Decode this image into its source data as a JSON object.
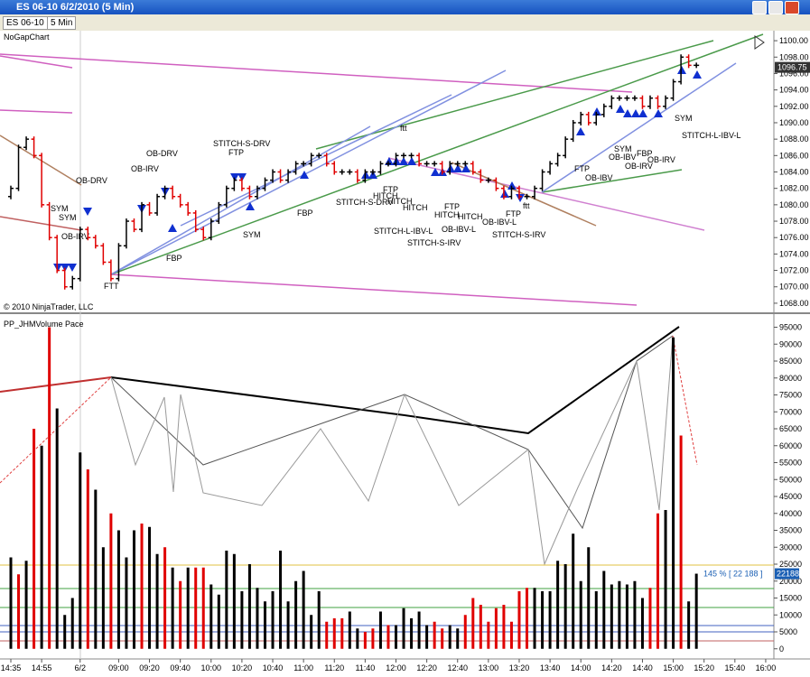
{
  "window": {
    "title": "ES 06-10  6/2/2010 (5 Min)",
    "symbol": "ES 06-10",
    "interval": "5 Min"
  },
  "copyright": "© 2010 NinjaTrader, LLC",
  "chart_data": [
    {
      "type": "ohlc",
      "title": "NoGapChart",
      "up_color": "#000000",
      "down_color": "#e00000",
      "open": [
        1081,
        1082,
        1087,
        1088,
        1086,
        1080,
        1076,
        1072,
        1070,
        1071,
        1077,
        1076,
        1075,
        1073,
        1071,
        1075,
        1078,
        1077,
        1080,
        1079,
        1081,
        1082,
        1081,
        1080,
        1079,
        1077,
        1076,
        1078,
        1080,
        1082,
        1083,
        1082,
        1081,
        1082,
        1083,
        1084,
        1083,
        1084,
        1085,
        1085,
        1086,
        1086,
        1085,
        1084,
        1084,
        1084,
        1083,
        1084,
        1084,
        1085,
        1085,
        1086,
        1086,
        1086,
        1085,
        1085,
        1085,
        1084,
        1085,
        1085,
        1085,
        1084,
        1083,
        1083,
        1082,
        1081,
        1082,
        1081,
        1081,
        1082,
        1084,
        1085,
        1086,
        1088,
        1090,
        1091,
        1090,
        1091,
        1092,
        1093,
        1093,
        1093,
        1093,
        1092,
        1093,
        1092,
        1093,
        1095,
        1098,
        1097
      ],
      "close": [
        1082,
        1087,
        1088,
        1086,
        1080,
        1076,
        1072,
        1070,
        1071,
        1077,
        1076,
        1075,
        1073,
        1071,
        1075,
        1078,
        1077,
        1080,
        1079,
        1081,
        1082,
        1081,
        1080,
        1079,
        1077,
        1076,
        1078,
        1080,
        1082,
        1083,
        1082,
        1081,
        1082,
        1083,
        1084,
        1083,
        1084,
        1085,
        1085,
        1086,
        1086,
        1085,
        1084,
        1084,
        1084,
        1083,
        1084,
        1084,
        1085,
        1085,
        1086,
        1086,
        1086,
        1085,
        1085,
        1085,
        1084,
        1085,
        1085,
        1085,
        1084,
        1083,
        1083,
        1082,
        1081,
        1082,
        1081,
        1081,
        1082,
        1084,
        1085,
        1086,
        1088,
        1090,
        1091,
        1090,
        1091,
        1092,
        1093,
        1093,
        1093,
        1093,
        1092,
        1093,
        1092,
        1093,
        1095,
        1098,
        1097,
        1097
      ],
      "ylim": [
        1067,
        1101
      ],
      "yticks": [
        {
          "value": 1068,
          "label": "1068.00"
        },
        {
          "value": 1070,
          "label": "1070.00"
        },
        {
          "value": 1072,
          "label": "1072.00"
        },
        {
          "value": 1074,
          "label": "1074.00"
        },
        {
          "value": 1076,
          "label": "1076.00"
        },
        {
          "value": 1078,
          "label": "1078.00"
        },
        {
          "value": 1080,
          "label": "1080.00"
        },
        {
          "value": 1082,
          "label": "1082.00"
        },
        {
          "value": 1084,
          "label": "1084.00"
        },
        {
          "value": 1086,
          "label": "1086.00"
        },
        {
          "value": 1088,
          "label": "1088.00"
        },
        {
          "value": 1090,
          "label": "1090.00"
        },
        {
          "value": 1092,
          "label": "1092.00"
        },
        {
          "value": 1094,
          "label": "1094.00"
        },
        {
          "value": 1096,
          "label": "1096.00"
        },
        {
          "value": 1098,
          "label": "1098.00"
        },
        {
          "value": 1100,
          "label": "1100.00"
        }
      ],
      "last_price": 1096.75,
      "annotations": [
        "OB-DRV",
        "SYM",
        "SYM",
        "OB-IRV",
        "FTT",
        "OB-DRV",
        "OB-IRV",
        "FBP",
        "STITCH-S-DRV",
        "FTP",
        "SYM",
        "FBP",
        "STITCH-S-DRV",
        "FTP",
        "HITCH",
        "HITCH",
        "HITCH",
        "STITCH-L-IBV-L",
        "ftt",
        "FTP",
        "HITCH",
        "HITCH",
        "OB-IBV-L",
        "STITCH-S-IRV",
        "OB-IBV-L",
        "FTP",
        "ftt",
        "STITCH-S-IRV",
        "FTP",
        "OB-IBV",
        "SYM",
        "OB-IBV",
        "FBP",
        "OB-IRV",
        "OB-IRV",
        "SYM",
        "STITCH-L-IBV-L"
      ]
    },
    {
      "type": "bar",
      "title": "PP_JHMVolume Pace",
      "values": [
        27000,
        22000,
        26000,
        65000,
        60000,
        95000,
        71000,
        10000,
        15000,
        58000,
        53000,
        47000,
        30000,
        40000,
        35000,
        27000,
        35000,
        37000,
        36000,
        28000,
        30000,
        24000,
        20000,
        24000,
        24000,
        24000,
        19000,
        16000,
        29000,
        28000,
        17000,
        25000,
        18000,
        14000,
        17000,
        29000,
        14000,
        20000,
        23000,
        10000,
        17000,
        8000,
        9000,
        9000,
        11000,
        6000,
        5000,
        6000,
        11000,
        7000,
        7000,
        12000,
        9000,
        11000,
        7000,
        8000,
        6000,
        7000,
        6000,
        10000,
        15000,
        13000,
        8000,
        12000,
        13000,
        8000,
        17000,
        18000,
        18000,
        17000,
        17000,
        26000,
        25000,
        34000,
        20000,
        30000,
        17000,
        23000,
        19000,
        20000,
        19000,
        20000,
        15000,
        18000,
        40000,
        41000,
        92000,
        63000,
        14000,
        22188
      ],
      "colors": [
        "#000",
        "#e00000",
        "#000",
        "#e00000",
        "#000",
        "#e00000",
        "#000",
        "#000",
        "#000",
        "#000",
        "#e00000",
        "#000",
        "#000",
        "#e00000",
        "#000",
        "#000",
        "#000",
        "#e00000",
        "#000",
        "#000",
        "#e00000",
        "#000",
        "#e00000",
        "#000",
        "#e00000",
        "#e00000",
        "#000",
        "#000",
        "#000",
        "#000",
        "#000",
        "#000",
        "#000",
        "#000",
        "#000",
        "#000",
        "#000",
        "#000",
        "#000",
        "#000",
        "#000",
        "#e00000",
        "#e00000",
        "#e00000",
        "#000",
        "#000",
        "#e00000",
        "#e00000",
        "#000",
        "#e00000",
        "#000",
        "#000",
        "#000",
        "#000",
        "#000",
        "#e00000",
        "#e00000",
        "#000",
        "#000",
        "#e00000",
        "#e00000",
        "#e00000",
        "#e00000",
        "#e00000",
        "#e00000",
        "#e00000",
        "#e00000",
        "#e00000",
        "#000",
        "#000",
        "#000",
        "#000",
        "#000",
        "#000",
        "#000",
        "#000",
        "#000",
        "#000",
        "#000",
        "#000",
        "#000",
        "#000",
        "#000",
        "#e00000",
        "#e00000",
        "#000",
        "#000",
        "#e00000",
        "#000",
        "#000"
      ],
      "ylim": [
        -3000,
        97000
      ],
      "yticks": [
        0,
        5000,
        10000,
        15000,
        20000,
        25000,
        30000,
        35000,
        40000,
        45000,
        50000,
        55000,
        60000,
        65000,
        70000,
        75000,
        80000,
        85000,
        90000,
        95000
      ],
      "pace_label": "145 % [ 22 188 ]",
      "x_labels": [
        "14:35",
        "14:55",
        "6/2",
        "09:00",
        "09:20",
        "09:40",
        "10:00",
        "10:20",
        "10:40",
        "11:00",
        "11:20",
        "11:40",
        "12:00",
        "12:20",
        "12:40",
        "13:00",
        "13:20",
        "13:40",
        "14:00",
        "14:20",
        "14:40",
        "15:00",
        "15:20",
        "15:40",
        "16:00"
      ]
    }
  ]
}
